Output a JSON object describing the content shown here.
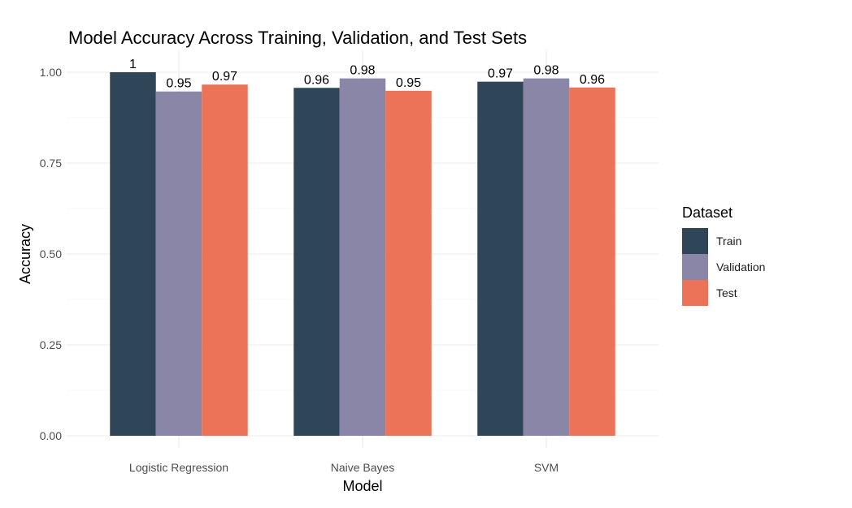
{
  "chart_data": {
    "type": "bar",
    "title": "Model Accuracy Across Training, Validation, and Test Sets",
    "xlabel": "Model",
    "ylabel": "Accuracy",
    "categories": [
      "Logistic Regression",
      "Naive Bayes",
      "SVM"
    ],
    "series": [
      {
        "name": "Train",
        "color": "#2e4657",
        "values": [
          1.0,
          0.957,
          0.974
        ],
        "labels": [
          "1",
          "0.96",
          "0.97"
        ]
      },
      {
        "name": "Validation",
        "color": "#8a86a8",
        "values": [
          0.947,
          0.983,
          0.983
        ],
        "labels": [
          "0.95",
          "0.98",
          "0.98"
        ]
      },
      {
        "name": "Test",
        "color": "#ec7357",
        "values": [
          0.966,
          0.949,
          0.958
        ],
        "labels": [
          "0.97",
          "0.95",
          "0.96"
        ]
      }
    ],
    "ylim": [
      0,
      1
    ],
    "yticks": [
      0,
      0.25,
      0.5,
      0.75,
      1.0
    ],
    "ytick_labels": [
      "0.00",
      "0.25",
      "0.50",
      "0.75",
      "1.00"
    ],
    "grid": true,
    "legend": {
      "title": "Dataset",
      "position": "right"
    }
  }
}
